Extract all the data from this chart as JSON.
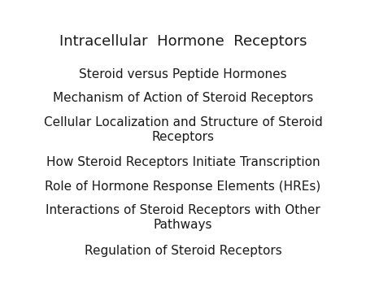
{
  "title": "Intracellular  Hormone  Receptors",
  "title_fontsize": 13,
  "background_color": "#ffffff",
  "text_color": "#1a1a1a",
  "bullet_lines": [
    "Steroid versus Peptide Hormones",
    "Mechanism of Action of Steroid Receptors",
    "Cellular Localization and Structure of Steroid\nReceptors",
    "How Steroid Receptors Initiate Transcription",
    "Role of Hormone Response Elements (HREs)",
    "Interactions of Steroid Receptors with Other\nPathways",
    "Regulation of Steroid Receptors"
  ],
  "bullet_fontsize": 11,
  "font_family": "DejaVu Sans"
}
